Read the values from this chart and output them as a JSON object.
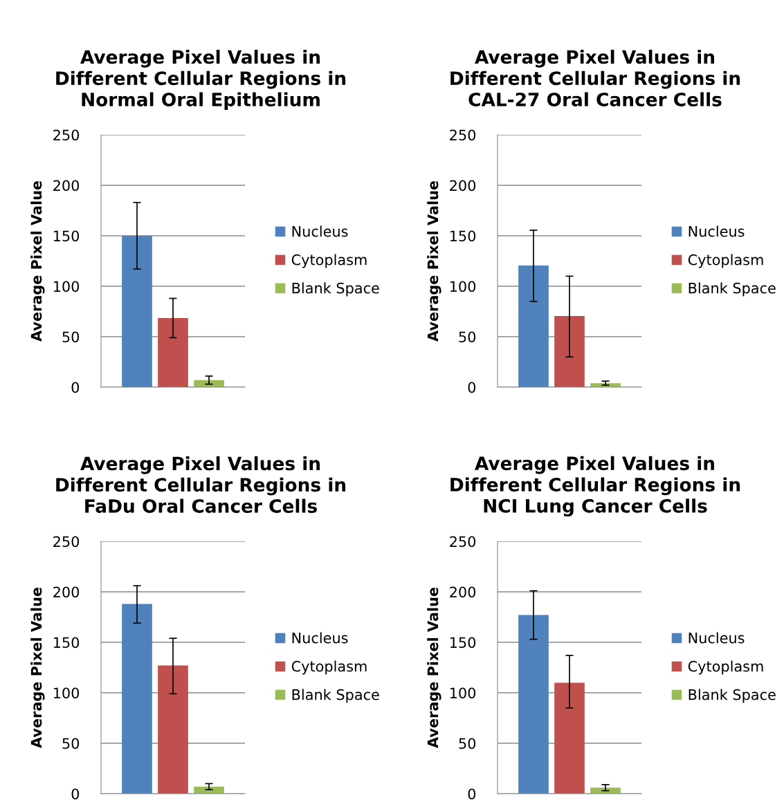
{
  "chart_data": [
    {
      "type": "bar",
      "title": "Average Pixel Values in\nDifferent Cellular Regions in\nNormal Oral Epithelium",
      "ylabel": "Average Pixel Value",
      "categories": [
        null
      ],
      "ylim": [
        0,
        250
      ],
      "yticks": [
        0,
        50,
        100,
        150,
        200,
        250
      ],
      "grid": "y",
      "legend": "right",
      "series": [
        {
          "name": "Nucleus",
          "color": "#4f81bd",
          "values": [
            150
          ],
          "errors": [
            [
              117,
              183
            ]
          ]
        },
        {
          "name": "Cytoplasm",
          "color": "#c0504d",
          "values": [
            68.5
          ],
          "errors": [
            [
              49,
              88
            ]
          ]
        },
        {
          "name": "Blank Space",
          "color": "#9bbb59",
          "values": [
            7
          ],
          "errors": [
            [
              3,
              11
            ]
          ]
        }
      ]
    },
    {
      "type": "bar",
      "title": "Average Pixel Values in\nDifferent Cellular Regions in\nCAL-27 Oral Cancer Cells",
      "ylabel": "Average Pixel Value",
      "categories": [
        null
      ],
      "ylim": [
        0,
        250
      ],
      "yticks": [
        0,
        50,
        100,
        150,
        200,
        250
      ],
      "grid": "y",
      "legend": "right",
      "series": [
        {
          "name": "Nucleus",
          "color": "#4f81bd",
          "values": [
            120.5
          ],
          "errors": [
            [
              85,
              155.5
            ]
          ]
        },
        {
          "name": "Cytoplasm",
          "color": "#c0504d",
          "values": [
            70.5
          ],
          "errors": [
            [
              30,
              110
            ]
          ]
        },
        {
          "name": "Blank Space",
          "color": "#9bbb59",
          "values": [
            4
          ],
          "errors": [
            [
              2,
              6
            ]
          ]
        }
      ]
    },
    {
      "type": "bar",
      "title": "Average Pixel Values in\nDifferent Cellular Regions in\nFaDu Oral Cancer Cells",
      "ylabel": "Average Pixel Value",
      "categories": [
        null
      ],
      "ylim": [
        0,
        250
      ],
      "yticks": [
        0,
        50,
        100,
        150,
        200,
        250
      ],
      "grid": "y",
      "legend": "right",
      "series": [
        {
          "name": "Nucleus",
          "color": "#4f81bd",
          "values": [
            188
          ],
          "errors": [
            [
              169,
              206
            ]
          ]
        },
        {
          "name": "Cytoplasm",
          "color": "#c0504d",
          "values": [
            127
          ],
          "errors": [
            [
              99,
              154
            ]
          ]
        },
        {
          "name": "Blank Space",
          "color": "#9bbb59",
          "values": [
            7
          ],
          "errors": [
            [
              4,
              10
            ]
          ]
        }
      ]
    },
    {
      "type": "bar",
      "title": "Average Pixel Values in\nDifferent Cellular Regions in\nNCI Lung Cancer Cells",
      "ylabel": "Average Pixel Value",
      "categories": [
        null
      ],
      "ylim": [
        0,
        250
      ],
      "yticks": [
        0,
        50,
        100,
        150,
        200,
        250
      ],
      "grid": "y",
      "legend": "right",
      "series": [
        {
          "name": "Nucleus",
          "color": "#4f81bd",
          "values": [
            177
          ],
          "errors": [
            [
              153,
              201
            ]
          ]
        },
        {
          "name": "Cytoplasm",
          "color": "#c0504d",
          "values": [
            110
          ],
          "errors": [
            [
              85,
              137
            ]
          ]
        },
        {
          "name": "Blank Space",
          "color": "#9bbb59",
          "values": [
            6
          ],
          "errors": [
            [
              3,
              9
            ]
          ]
        }
      ]
    }
  ]
}
